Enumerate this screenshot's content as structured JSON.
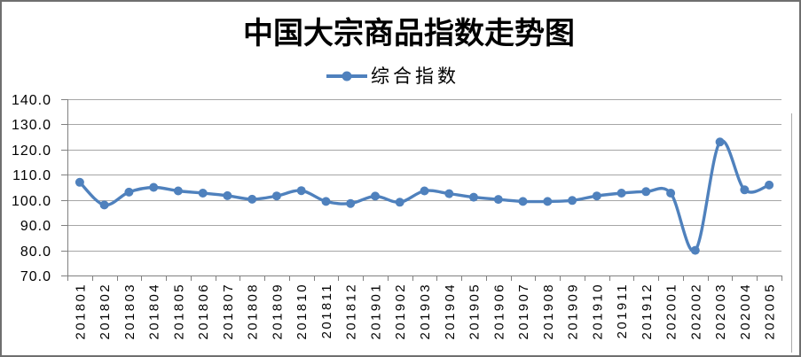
{
  "window": {
    "background": "#ffffff",
    "border_color": "#6f6f6f"
  },
  "chart_data": {
    "type": "line",
    "title": "中国大宗商品指数走势图",
    "legend": {
      "label": "综合指数",
      "position": "top"
    },
    "xlabel": "",
    "ylabel": "",
    "grid": true,
    "ylim": [
      70,
      140
    ],
    "ytick_interval": 10,
    "ytick_labels": [
      "140.0",
      "130.0",
      "120.0",
      "110.0",
      "100.0",
      "90.0",
      "80.0",
      "70.0"
    ],
    "categories": [
      "201801",
      "201802",
      "201803",
      "201804",
      "201805",
      "201806",
      "201807",
      "201808",
      "201809",
      "201810",
      "201811",
      "201812",
      "201901",
      "201902",
      "201903",
      "201904",
      "201905",
      "201906",
      "201907",
      "201908",
      "201909",
      "201910",
      "201911",
      "201912",
      "202001",
      "202002",
      "202003",
      "202004",
      "202005"
    ],
    "series": [
      {
        "name": "综合指数",
        "color": "#4F81BD",
        "marker": "circle",
        "smoothed": true,
        "values": [
          107.0,
          98.0,
          103.1,
          105.0,
          103.6,
          102.7,
          101.7,
          100.3,
          101.6,
          103.7,
          99.4,
          98.6,
          101.5,
          99.1,
          103.6,
          102.5,
          101.1,
          100.2,
          99.4,
          99.4,
          99.8,
          101.6,
          102.7,
          103.3,
          102.7,
          80.0,
          123.0,
          104.0,
          105.9
        ]
      }
    ],
    "colors": {
      "line": "#4F81BD",
      "gridline": "#A6A6A6",
      "axis": "#808080",
      "text": "#000000"
    }
  }
}
